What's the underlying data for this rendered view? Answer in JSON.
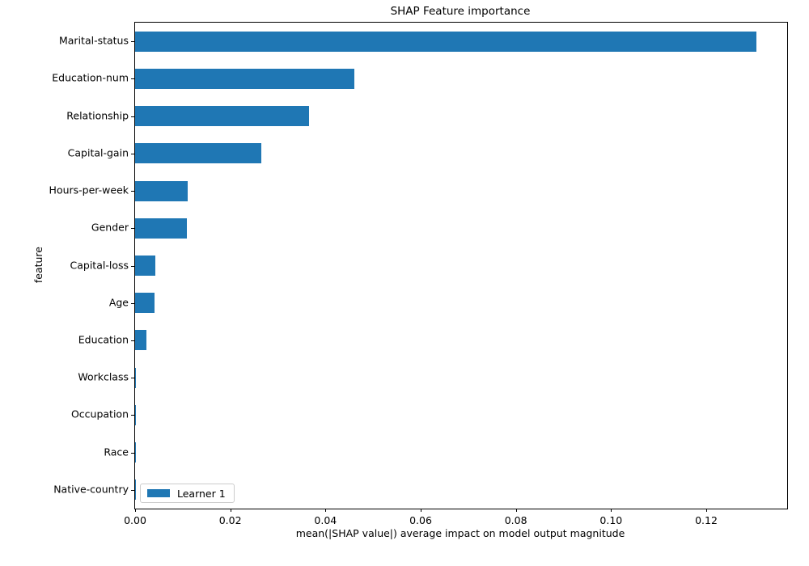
{
  "chart_data": {
    "type": "bar",
    "orientation": "horizontal",
    "title": "SHAP Feature importance",
    "xlabel": "mean(|SHAP value|) average impact on model output magnitude",
    "ylabel": "feature",
    "categories": [
      "Marital-status",
      "Education-num",
      "Relationship",
      "Capital-gain",
      "Hours-per-week",
      "Gender",
      "Capital-loss",
      "Age",
      "Education",
      "Workclass",
      "Occupation",
      "Race",
      "Native-country"
    ],
    "series": [
      {
        "name": "Learner 1",
        "values": [
          0.1305,
          0.046,
          0.0366,
          0.0266,
          0.0111,
          0.0109,
          0.0043,
          0.0041,
          0.0023,
          0.0002,
          0.0002,
          0.0001,
          0.0001
        ]
      }
    ],
    "xlim": [
      0,
      0.137
    ],
    "x_ticks": [
      "0.00",
      "0.02",
      "0.04",
      "0.06",
      "0.08",
      "0.10",
      "0.12"
    ],
    "x_tick_values": [
      0.0,
      0.02,
      0.04,
      0.06,
      0.08,
      0.1,
      0.12
    ],
    "legend": {
      "position": "lower left",
      "entries": [
        "Learner 1"
      ]
    },
    "bar_color": "#1f77b4",
    "grid": false,
    "background_color": "#ffffff"
  }
}
